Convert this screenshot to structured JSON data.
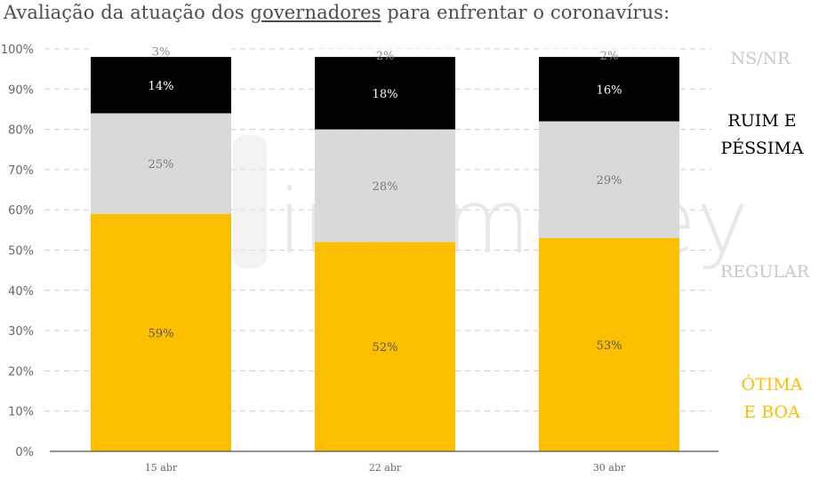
{
  "title": {
    "before": "Avaliação da atuação dos ",
    "link": "governadores",
    "after": " para enfrentar o coronavírus:"
  },
  "watermark": "infomoney",
  "colors": {
    "otima_boa": "#fbbe00",
    "regular": "#d9d9d9",
    "ruim_pessima": "#000000",
    "nsnr": "#ffffff",
    "regular_label": "#c8c8c8",
    "nsnr_label": "#c8c8c8",
    "otima_label": "#fbbe00",
    "ruim_label": "#000000",
    "grid": "#cccccc",
    "axis": "#555555"
  },
  "chart_data": {
    "type": "bar",
    "stacked": true,
    "categories": [
      "15 abr",
      "22 abr",
      "30 abr"
    ],
    "series": [
      {
        "name": "ÓTIMA E BOA",
        "values": [
          59,
          52,
          53
        ],
        "labels": [
          "59%",
          "52%",
          "53%"
        ]
      },
      {
        "name": "REGULAR",
        "values": [
          25,
          28,
          29
        ],
        "labels": [
          "25%",
          "28%",
          "29%"
        ]
      },
      {
        "name": "RUIM E PÉSSIMA",
        "values": [
          14,
          18,
          16
        ],
        "labels": [
          "14%",
          "18%",
          "16%"
        ]
      },
      {
        "name": "NS/NR",
        "values": [
          3,
          2,
          2
        ],
        "labels": [
          "3%",
          "2%",
          "2%"
        ]
      }
    ],
    "yticks": [
      "0%",
      "10%",
      "20%",
      "30%",
      "40%",
      "50%",
      "60%",
      "70%",
      "80%",
      "90%",
      "100%"
    ],
    "ylim": [
      0,
      100
    ],
    "grid": true,
    "legend_labels": {
      "nsnr": [
        "NS/NR"
      ],
      "ruim": [
        "RUIM E",
        "PÉSSIMA"
      ],
      "regular": [
        "REGULAR"
      ],
      "otima": [
        "ÓTIMA",
        "E BOA"
      ]
    }
  }
}
